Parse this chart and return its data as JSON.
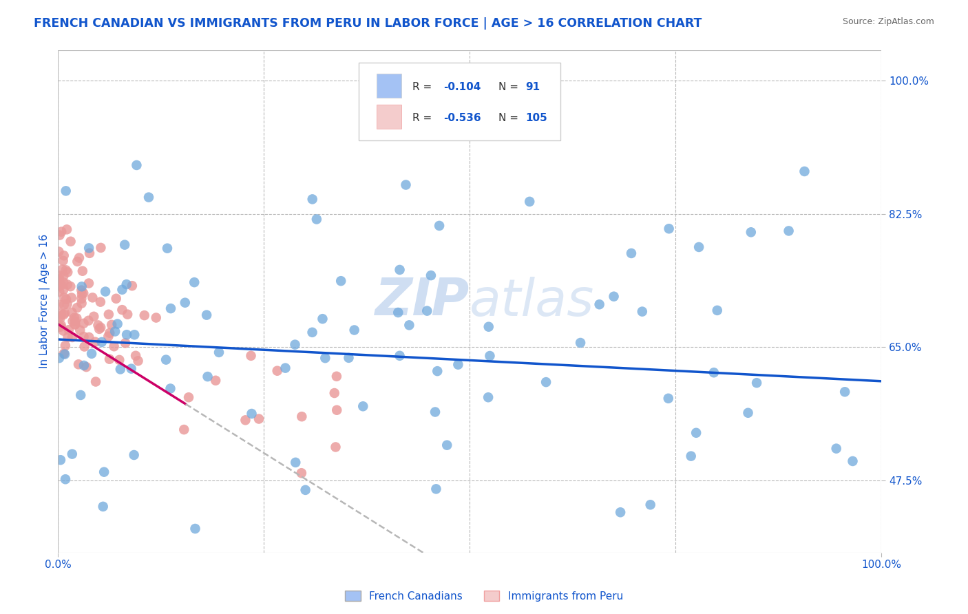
{
  "title": "FRENCH CANADIAN VS IMMIGRANTS FROM PERU IN LABOR FORCE | AGE > 16 CORRELATION CHART",
  "source": "Source: ZipAtlas.com",
  "ylabel": "In Labor Force | Age > 16",
  "xlim": [
    0.0,
    1.0
  ],
  "ylim": [
    0.38,
    1.04
  ],
  "ytick_labels_right": [
    "47.5%",
    "65.0%",
    "82.5%",
    "100.0%"
  ],
  "ytick_positions_right": [
    0.475,
    0.65,
    0.825,
    1.0
  ],
  "xtick_labels": [
    "0.0%",
    "100.0%"
  ],
  "xtick_positions": [
    0.0,
    1.0
  ],
  "blue_color": "#a4c2f4",
  "pink_color": "#f4cccc",
  "blue_fill_color": "#6fa8dc",
  "pink_fill_color": "#ea9999",
  "blue_line_color": "#1155cc",
  "pink_line_color": "#cc0066",
  "pink_dash_color": "#b7b7b7",
  "r_blue": -0.104,
  "n_blue": 91,
  "r_pink": -0.536,
  "n_pink": 105,
  "background_color": "#ffffff",
  "grid_color": "#b7b7b7",
  "title_color": "#1155cc",
  "source_color": "#666666",
  "watermark": "ZIPatlas",
  "watermark_color": "#c9daf8",
  "label_color": "#1155cc"
}
